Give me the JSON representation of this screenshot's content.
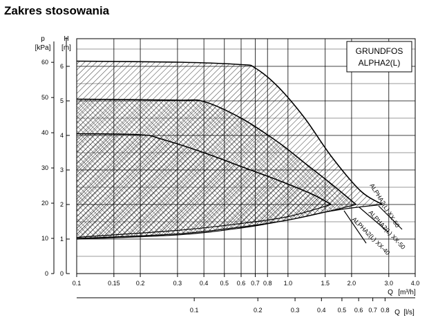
{
  "page_title": "Zakres stosowania",
  "chart_data": {
    "type": "area",
    "title": "GRUNDFOS ALPHA2(L)",
    "title_lines": [
      "GRUNDFOS",
      "ALPHA2(L)"
    ],
    "x_scale": "log",
    "xlabel": "Q [m³/h]",
    "xlabel_parts": [
      "Q",
      "[m³/h]"
    ],
    "xlim": [
      0.1,
      4.0
    ],
    "x_ticks": [
      0.1,
      0.15,
      0.2,
      0.3,
      0.4,
      0.5,
      0.6,
      0.7,
      0.8,
      1.0,
      1.5,
      2.0,
      3.0,
      4.0
    ],
    "x_tick_labels": [
      "0.1",
      "0.15",
      "0.2",
      "0.3",
      "0.4",
      "0.5",
      "0.6",
      "0.7",
      "0.8",
      "1.0",
      "1.5",
      "2.0",
      "3.0",
      "4.0"
    ],
    "x2label": "Q [l/s]",
    "x2label_parts": [
      "Q",
      "[l/s]"
    ],
    "x2_ticks": [
      0.1,
      0.2,
      0.3,
      0.4,
      0.5,
      0.6,
      0.7,
      0.8
    ],
    "x2_tick_labels": [
      "0.1",
      "0.2",
      "0.3",
      "0.4",
      "0.5",
      "0.6",
      "0.7",
      "0.8"
    ],
    "ylabel": "H [m]",
    "ylabel_parts": [
      "H",
      "[m]"
    ],
    "ylim": [
      0,
      6.8
    ],
    "y_ticks": [
      0,
      1,
      2,
      3,
      4,
      5,
      6
    ],
    "y2label": "p [kPa]",
    "y2label_parts": [
      "p",
      "[kPa]"
    ],
    "y2_ticks": [
      0,
      10,
      20,
      30,
      40,
      50,
      60
    ],
    "grid": true,
    "series": [
      {
        "name": "ALPHA2(L) XX-60",
        "color": "#000000",
        "hatch": "single-diagonal",
        "max_curve": [
          [
            0.1,
            6.15
          ],
          [
            0.3,
            6.12
          ],
          [
            0.6,
            6.05
          ],
          [
            0.7,
            5.95
          ],
          [
            0.9,
            5.4
          ],
          [
            1.2,
            4.5
          ],
          [
            1.6,
            3.4
          ],
          [
            2.2,
            2.4
          ],
          [
            2.8,
            2.0
          ]
        ],
        "min_curve": [
          [
            0.1,
            1.0
          ],
          [
            0.3,
            1.12
          ],
          [
            0.6,
            1.32
          ],
          [
            1.0,
            1.55
          ],
          [
            1.5,
            1.78
          ],
          [
            2.0,
            1.9
          ],
          [
            2.8,
            2.0
          ]
        ]
      },
      {
        "name": "ALPHA2(L) XX-50",
        "color": "#000000",
        "hatch": "cross-diagonal",
        "max_curve": [
          [
            0.1,
            5.05
          ],
          [
            0.3,
            5.02
          ],
          [
            0.4,
            4.98
          ],
          [
            0.6,
            4.5
          ],
          [
            0.9,
            3.8
          ],
          [
            1.2,
            3.2
          ],
          [
            1.6,
            2.6
          ],
          [
            2.1,
            2.0
          ]
        ],
        "min_curve": [
          [
            0.1,
            1.02
          ],
          [
            0.3,
            1.15
          ],
          [
            0.6,
            1.35
          ],
          [
            1.0,
            1.55
          ],
          [
            1.5,
            1.78
          ],
          [
            2.1,
            2.0
          ]
        ]
      },
      {
        "name": "ALPHA2(L) XX-40",
        "color": "#000000",
        "hatch": "single-diagonal",
        "max_curve": [
          [
            0.1,
            4.05
          ],
          [
            0.2,
            4.02
          ],
          [
            0.25,
            3.9
          ],
          [
            0.4,
            3.5
          ],
          [
            0.6,
            3.1
          ],
          [
            0.9,
            2.7
          ],
          [
            1.3,
            2.3
          ],
          [
            1.6,
            2.0
          ]
        ],
        "min_curve": [
          [
            0.1,
            1.05
          ],
          [
            0.3,
            1.25
          ],
          [
            0.6,
            1.45
          ],
          [
            1.0,
            1.65
          ],
          [
            1.6,
            2.0
          ]
        ]
      }
    ]
  }
}
